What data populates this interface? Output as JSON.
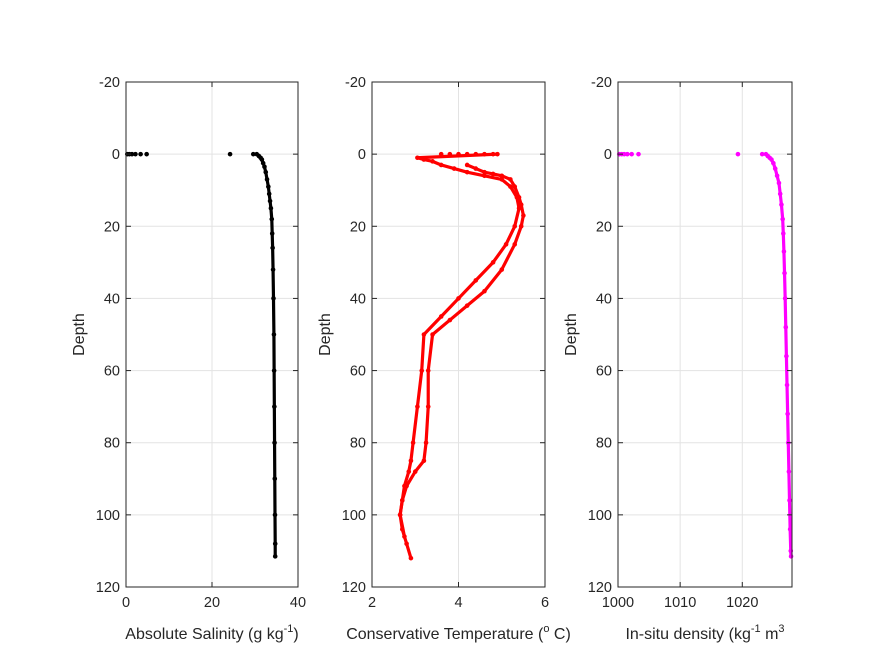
{
  "chart_data": [
    {
      "type": "scatter",
      "xlabel": "Absolute Salinity (g kg",
      "xlabel_sup": "-1",
      "xlabel_tail": ")",
      "ylabel": "Depth",
      "xlim": [
        0,
        40
      ],
      "ylim": [
        -20,
        120
      ],
      "y_reversed": true,
      "xticks": [
        "0",
        "20",
        "40"
      ],
      "yticks": [
        "-20",
        "0",
        "20",
        "40",
        "60",
        "80",
        "100",
        "120"
      ],
      "grid": true,
      "color": "#000000",
      "x": [
        0.3,
        0.8,
        1.4,
        2.2,
        3.4,
        4.8,
        24.2,
        29.6,
        30.4,
        30.9,
        31.3,
        31.6,
        31.9,
        32.2,
        32.5,
        32.8,
        33.1,
        33.3,
        33.5,
        33.7,
        33.9,
        34.0,
        34.1,
        34.2,
        34.3,
        34.4,
        34.45,
        34.5,
        34.55,
        34.6,
        34.65,
        34.7,
        34.7
      ],
      "y": [
        0,
        0,
        0,
        0,
        0,
        0,
        0,
        0,
        0,
        0.5,
        1,
        1.5,
        2.5,
        3.5,
        5,
        7,
        9,
        11,
        13,
        15,
        18,
        22,
        26,
        32,
        40,
        50,
        60,
        70,
        80,
        90,
        100,
        108,
        111.5
      ]
    },
    {
      "type": "scatter",
      "xlabel": "Conservative Temperature (",
      "xlabel_sup": "o",
      "xlabel_tail": " C)",
      "ylabel": "Depth",
      "xlim": [
        2,
        6
      ],
      "ylim": [
        -20,
        120
      ],
      "y_reversed": true,
      "xticks": [
        "2",
        "4",
        "6"
      ],
      "yticks": [
        "-20",
        "0",
        "20",
        "40",
        "60",
        "80",
        "100",
        "120"
      ],
      "grid": true,
      "color": "#ff0000",
      "x": [
        3.6,
        3.8,
        4.0,
        4.2,
        4.4,
        4.6,
        4.8,
        4.9,
        3.05,
        3.2,
        3.4,
        3.6,
        3.9,
        4.2,
        4.6,
        5.0,
        5.2,
        5.35,
        5.4,
        5.3,
        5.1,
        4.8,
        4.4,
        4.0,
        3.6,
        3.2,
        3.15,
        3.05,
        2.95,
        2.9,
        2.85,
        2.75,
        2.7,
        2.65,
        2.7,
        2.8,
        2.9,
        4.2,
        4.4,
        4.6,
        4.8,
        5.0,
        5.2,
        5.3,
        5.4,
        5.45,
        5.5,
        5.45,
        5.3,
        5.0,
        4.6,
        4.2,
        3.8,
        3.4,
        3.3,
        3.3,
        3.25,
        3.2,
        3.0,
        2.8,
        2.7,
        2.65,
        2.75
      ],
      "y": [
        0,
        0,
        0,
        0,
        0,
        0,
        0,
        0,
        1,
        1.5,
        2,
        3,
        4,
        5,
        6,
        7,
        9,
        12,
        15,
        20,
        25,
        30,
        35,
        40,
        45,
        50,
        60,
        70,
        80,
        85,
        88,
        92,
        96,
        100,
        104,
        108,
        112,
        3,
        4,
        5,
        5.5,
        6,
        7,
        9,
        12,
        14,
        17,
        20,
        25,
        32,
        38,
        42,
        46,
        50,
        60,
        70,
        80,
        85,
        88,
        92,
        96,
        100,
        106
      ]
    },
    {
      "type": "scatter",
      "xlabel": "In-situ density (kg",
      "xlabel_sup": "-1",
      "xlabel_tail": " m",
      "xlabel_sup2": "3",
      "ylabel": "Depth",
      "xlim": [
        1000,
        1028
      ],
      "ylim": [
        -20,
        120
      ],
      "y_reversed": true,
      "xticks": [
        "1000",
        "1010",
        "1020"
      ],
      "xtick_values": [
        1000,
        1010,
        1020
      ],
      "yticks": [
        "-20",
        "0",
        "20",
        "40",
        "60",
        "80",
        "100",
        "120"
      ],
      "grid": true,
      "color": "#ff00ff",
      "x": [
        1000.2,
        1000.6,
        1001.0,
        1001.5,
        1002.2,
        1003.3,
        1019.3,
        1023.2,
        1023.8,
        1024.1,
        1024.4,
        1024.7,
        1025.0,
        1025.3,
        1025.6,
        1025.9,
        1026.1,
        1026.3,
        1026.5,
        1026.6,
        1026.7,
        1026.8,
        1026.9,
        1027.0,
        1027.1,
        1027.2,
        1027.3,
        1027.4,
        1027.5,
        1027.6,
        1027.7,
        1027.8,
        1027.85
      ],
      "y": [
        0,
        0,
        0,
        0,
        0,
        0,
        0,
        0,
        0,
        0.5,
        1,
        1.5,
        2.5,
        4,
        6,
        8,
        11,
        14,
        18,
        22,
        27,
        33,
        40,
        48,
        56,
        64,
        72,
        80,
        88,
        96,
        104,
        110,
        111.5
      ]
    }
  ]
}
